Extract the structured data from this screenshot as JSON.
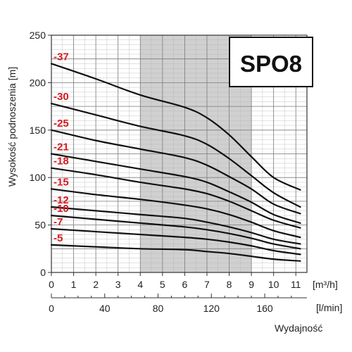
{
  "chart_data": {
    "type": "line",
    "model": "SPO8",
    "ylabel": "Wysokość podnoszenia [m]",
    "xlabel": "Wydajność",
    "x_unit": "[m³/h]",
    "x2_unit": "[l/min]",
    "x_ticks": [
      "0",
      "1",
      "2",
      "3",
      "4",
      "5",
      "6",
      "7",
      "8",
      "9",
      "10",
      "11"
    ],
    "x2_ticks": [
      "0",
      "40",
      "80",
      "120",
      "160"
    ],
    "x2_tick_values": [
      0,
      40,
      80,
      120,
      160
    ],
    "y_ticks": [
      "0",
      "50",
      "100",
      "150",
      "200",
      "250"
    ],
    "xlim": [
      0,
      11.5
    ],
    "ylim": [
      0,
      250
    ],
    "grid": true,
    "highlight_band": [
      4,
      9
    ],
    "colors": {
      "curve": "#111111",
      "label": "#d7191f",
      "band": "#d0d0d0",
      "grid": "#b5b5b5"
    },
    "series": [
      {
        "name": "-37",
        "x": [
          0,
          2,
          4,
          6,
          7,
          8,
          9,
          10,
          11.2
        ],
        "y": [
          220,
          204,
          187,
          174,
          163,
          145,
          122,
          100,
          87
        ]
      },
      {
        "name": "-30",
        "x": [
          0,
          2,
          4,
          6,
          7,
          8,
          9,
          10,
          11.2
        ],
        "y": [
          178,
          166,
          154,
          144,
          135,
          120,
          102,
          84,
          69
        ]
      },
      {
        "name": "-25",
        "x": [
          0,
          2,
          4,
          6,
          7,
          8,
          9,
          10,
          11.2
        ],
        "y": [
          150,
          139,
          130,
          121,
          113,
          101,
          88,
          72,
          62
        ]
      },
      {
        "name": "-21",
        "x": [
          0,
          2,
          4,
          6,
          7,
          8,
          9,
          10,
          11.2
        ],
        "y": [
          125,
          117,
          109,
          101,
          95,
          85,
          74,
          61,
          52
        ]
      },
      {
        "name": "-18",
        "x": [
          0,
          2,
          4,
          6,
          7,
          8,
          9,
          10,
          11.2
        ],
        "y": [
          110,
          103,
          95,
          88,
          83,
          75,
          65,
          55,
          47
        ]
      },
      {
        "name": "-15",
        "x": [
          0,
          2,
          4,
          6,
          7,
          8,
          9,
          10,
          11.2
        ],
        "y": [
          88,
          82,
          77,
          71,
          67,
          61,
          53,
          44,
          37
        ]
      },
      {
        "name": "-12",
        "x": [
          0,
          2,
          4,
          6,
          7,
          8,
          9,
          10,
          11.2
        ],
        "y": [
          69,
          65,
          61,
          57,
          53,
          48,
          42,
          35,
          30
        ]
      },
      {
        "name": "-10",
        "x": [
          0,
          2,
          4,
          6,
          7,
          8,
          9,
          10,
          11.2
        ],
        "y": [
          60,
          56,
          52,
          48,
          45,
          41,
          36,
          30,
          25
        ]
      },
      {
        "name": "-7",
        "x": [
          0,
          2,
          4,
          6,
          7,
          8,
          9,
          10,
          11.2
        ],
        "y": [
          46,
          43,
          40,
          37,
          35,
          32,
          28,
          23,
          19
        ]
      },
      {
        "name": "-5",
        "x": [
          0,
          2,
          4,
          6,
          7,
          8,
          9,
          10,
          11.2
        ],
        "y": [
          29,
          27,
          25,
          24,
          22,
          20,
          17,
          14,
          12
        ]
      }
    ]
  }
}
